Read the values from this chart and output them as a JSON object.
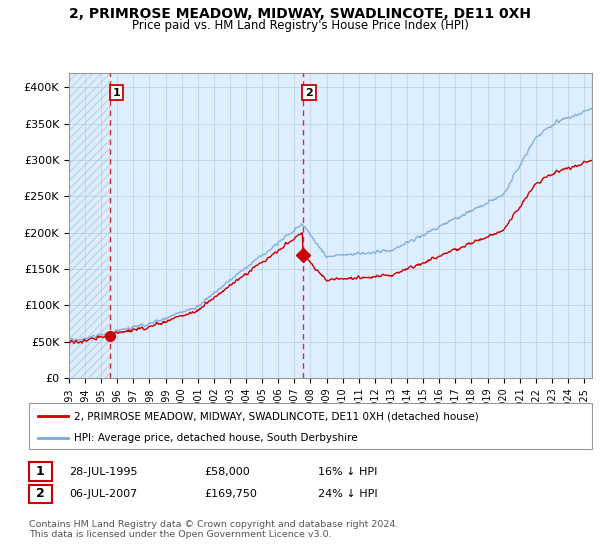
{
  "title": "2, PRIMROSE MEADOW, MIDWAY, SWADLINCOTE, DE11 0XH",
  "subtitle": "Price paid vs. HM Land Registry's House Price Index (HPI)",
  "ylabel_ticks": [
    "£0",
    "£50K",
    "£100K",
    "£150K",
    "£200K",
    "£250K",
    "£300K",
    "£350K",
    "£400K"
  ],
  "ytick_values": [
    0,
    50000,
    100000,
    150000,
    200000,
    250000,
    300000,
    350000,
    400000
  ],
  "ylim": [
    0,
    420000
  ],
  "xlim_start": 1993.0,
  "xlim_end": 2025.5,
  "purchase1_x": 1995.57,
  "purchase1_y": 58000,
  "purchase2_x": 2007.52,
  "purchase2_y": 169750,
  "hpi_color": "#7aaadd",
  "price_color": "#cc0000",
  "dashed_line_color": "#cc0000",
  "plot_bg_color": "#ddeeff",
  "legend_entry1": "2, PRIMROSE MEADOW, MIDWAY, SWADLINCOTE, DE11 0XH (detached house)",
  "legend_entry2": "HPI: Average price, detached house, South Derbyshire",
  "table_row1": [
    "1",
    "28-JUL-1995",
    "£58,000",
    "16% ↓ HPI"
  ],
  "table_row2": [
    "2",
    "06-JUL-2007",
    "£169,750",
    "24% ↓ HPI"
  ],
  "footnote": "Contains HM Land Registry data © Crown copyright and database right 2024.\nThis data is licensed under the Open Government Licence v3.0.",
  "xtick_years": [
    1993,
    1994,
    1995,
    1996,
    1997,
    1998,
    1999,
    2000,
    2001,
    2002,
    2003,
    2004,
    2005,
    2006,
    2007,
    2008,
    2009,
    2010,
    2011,
    2012,
    2013,
    2014,
    2015,
    2016,
    2017,
    2018,
    2019,
    2020,
    2021,
    2022,
    2023,
    2024,
    2025
  ],
  "hpi_seed": 17,
  "prop_seed": 23
}
